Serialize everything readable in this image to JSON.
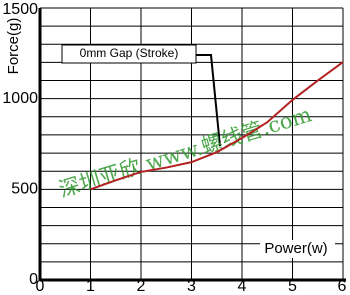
{
  "chart_data": {
    "type": "line",
    "x": [
      1,
      1.5,
      2,
      2.5,
      3,
      3.5,
      4,
      4.5,
      5,
      5.5,
      6
    ],
    "series": [
      {
        "name": "Force",
        "color": "#b22222",
        "values": [
          500,
          550,
          596,
          620,
          650,
          705,
          783,
          870,
          993,
          1100,
          1202
        ]
      }
    ],
    "xlabel": "Power(w)",
    "ylabel": "Force(g)",
    "xlim": [
      0,
      6
    ],
    "xticks": [
      0,
      1,
      2,
      3,
      4,
      5,
      6
    ],
    "ylim": [
      0,
      1500
    ],
    "yticks": [
      0,
      500,
      1000,
      1500
    ],
    "ygrid": [
      100,
      200,
      300,
      400,
      500,
      600,
      700,
      800,
      900,
      1000,
      1100,
      1200,
      1300,
      1400,
      1500
    ],
    "grid": true,
    "annotation": "0mm Gap (Stroke)",
    "watermark": "深圳亚欣 www.螺线管.com"
  }
}
